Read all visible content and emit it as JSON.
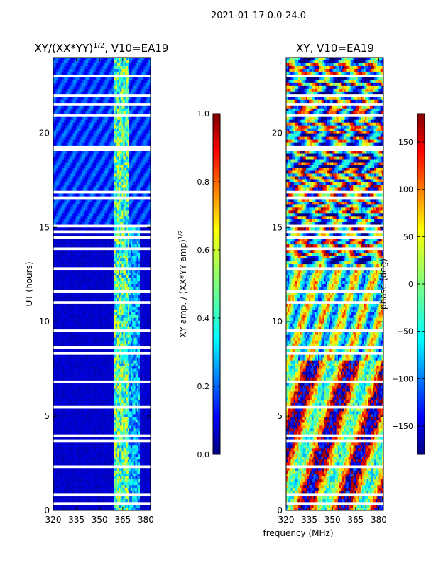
{
  "figure": {
    "suptitle": "2021-01-17 0.0-24.0",
    "xlabel": "frequency (MHz)"
  },
  "colors": {
    "jet": [
      "#00007f",
      "#0000ff",
      "#007fff",
      "#00ffff",
      "#7fff7f",
      "#ffff00",
      "#ff7f00",
      "#ff0000",
      "#7f0000"
    ]
  },
  "chart_data": [
    {
      "type": "heatmap",
      "title": "XY/(XX*YY)^1/2, V10=EA19",
      "title_main": "XY/(XX*YY)",
      "title_exp": "1/2",
      "title_tail": ", V10=EA19",
      "xlabel": "frequency (MHz)",
      "ylabel": "UT (hours)",
      "xlim": [
        320,
        383
      ],
      "ylim": [
        0,
        24
      ],
      "xticks": [
        320,
        335,
        350,
        365,
        380
      ],
      "yticks": [
        0,
        5,
        10,
        15,
        20
      ],
      "colorbar": {
        "label_main": "XY amp. / (XX*YY amp)",
        "label_exp": "1/2",
        "range": [
          0.0,
          1.0
        ],
        "ticks": [
          "0.0",
          "0.2",
          "0.4",
          "0.6",
          "0.8",
          "1.0"
        ],
        "tick_values": [
          0.0,
          0.2,
          0.4,
          0.6,
          0.8,
          1.0
        ]
      },
      "notes": "Amplitude ratio near 0 (dark blue) over most of band; elevated values (0.3-0.6) in vertical bands near 359-368 MHz"
    },
    {
      "type": "heatmap",
      "title": "XY, V10=EA19",
      "xlabel": "frequency (MHz)",
      "ylabel": "",
      "xlim": [
        320,
        383
      ],
      "ylim": [
        0,
        24
      ],
      "xticks": [
        320,
        335,
        350,
        365,
        380
      ],
      "yticks": [
        0,
        5,
        10,
        15,
        20
      ],
      "colorbar": {
        "label": "phase (deg)",
        "range": [
          -180,
          180
        ],
        "ticks": [
          "150",
          "100",
          "50",
          "0",
          "−50",
          "−100",
          "−150"
        ],
        "tick_values": [
          150,
          100,
          50,
          0,
          -50,
          -100,
          -150
        ]
      },
      "notes": "Phase varies widely across band and time"
    }
  ]
}
